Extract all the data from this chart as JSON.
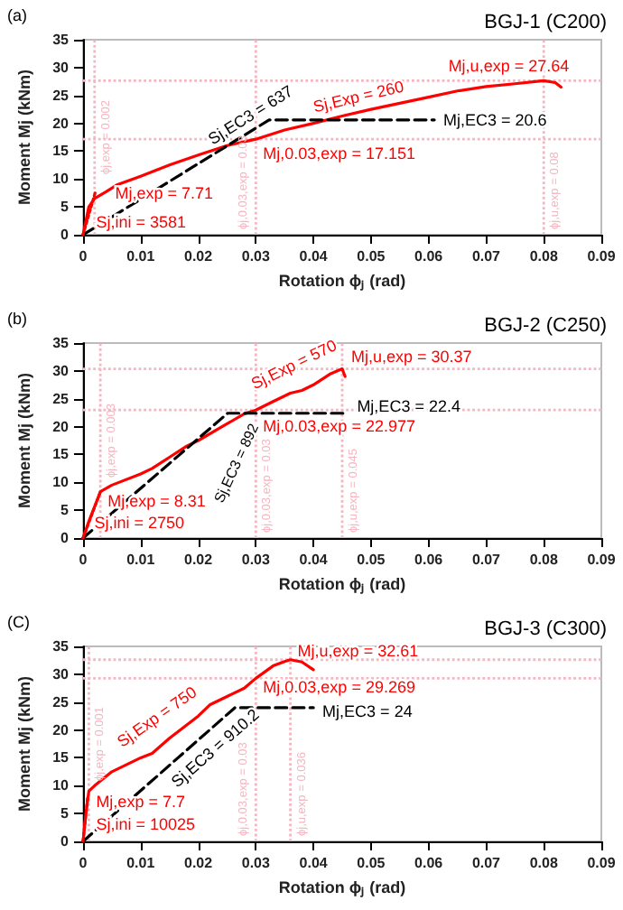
{
  "chart_data": [
    {
      "type": "line",
      "title": "BGJ-1 (C200)",
      "xlabel": "Rotation ϕⱼ (rad)",
      "ylabel": "Moment Mj (kNm)",
      "xlim": [
        0,
        0.09
      ],
      "xticks": [
        0,
        0.01,
        0.02,
        0.03,
        0.04,
        0.05,
        0.06,
        0.07,
        0.08,
        0.09
      ],
      "ylim": [
        0,
        35
      ],
      "yticks": [
        0,
        5,
        10,
        15,
        20,
        25,
        30,
        35
      ],
      "series": [
        {
          "color": "#ff0000",
          "line_style": "solid",
          "x": [
            0,
            0.001,
            0.002,
            0.004,
            0.006,
            0.01,
            0.015,
            0.02,
            0.025,
            0.03,
            0.035,
            0.04,
            0.045,
            0.05,
            0.055,
            0.06,
            0.065,
            0.07,
            0.075,
            0.08,
            0.082,
            0.083
          ],
          "values": [
            0,
            5,
            6.5,
            7.71,
            9,
            10.5,
            12.5,
            14.3,
            16,
            17.151,
            18.8,
            20,
            21.3,
            22.5,
            23.6,
            24.7,
            25.8,
            26.6,
            27.1,
            27.64,
            27.3,
            26.5
          ]
        },
        {
          "color": "#000000",
          "line_style": "dashed",
          "x": [
            0,
            0.0323,
            0.061
          ],
          "values": [
            0,
            20.6,
            20.6
          ]
        },
        {
          "color": "#ff0000",
          "line_style": "dotted",
          "x": [
            0,
            0.00215
          ],
          "values": [
            0,
            7.71
          ]
        }
      ],
      "ref_lines": [
        {
          "axis": "y",
          "value": 27.64,
          "label": null,
          "color": "#f4b6c0",
          "line_style": "dotted"
        },
        {
          "axis": "y",
          "value": 17.151,
          "label": null,
          "color": "#f4b6c0",
          "line_style": "dotted"
        },
        {
          "axis": "x",
          "value": 0.002,
          "label": "ϕj,exp = 0.002",
          "color": "#f4b6c0",
          "line_style": "dotted"
        },
        {
          "axis": "x",
          "value": 0.03,
          "label": "ϕj,0.03,exp = 0.03",
          "color": "#f4b6c0",
          "line_style": "dotted"
        },
        {
          "axis": "x",
          "value": 0.08,
          "label": "ϕj,u,exp = 0.08",
          "color": "#f4b6c0",
          "line_style": "dotted"
        }
      ],
      "annotations": [
        "(a)",
        {
          "text": "Mj,u,exp = 27.64",
          "x": 0.08,
          "y": 27.64
        },
        {
          "text": "Sj,Exp = 260",
          "x": 0.04,
          "y": 20
        },
        {
          "text": "Sj,EC3 = 637",
          "x": 0.022,
          "y": 14.01
        },
        {
          "text": "Mj,EC3 = 20.6",
          "x": 0.061,
          "y": 20.6
        },
        {
          "text": "Mj,0.03,exp = 17.151",
          "x": 0.03,
          "y": 17.151
        },
        {
          "text": "Mj,exp = 7.71",
          "x": 0.004,
          "y": 7.71
        },
        {
          "text": "Sj,ini = 3581",
          "x": 0.001,
          "y": 3.58
        }
      ]
    },
    {
      "type": "line",
      "title": "BGJ-2 (C250)",
      "xlabel": "Rotation ϕⱼ (rad)",
      "ylabel": "Moment Mj (kNm)",
      "xlim": [
        0,
        0.09
      ],
      "xticks": [
        0,
        0.01,
        0.02,
        0.03,
        0.04,
        0.05,
        0.06,
        0.07,
        0.08,
        0.09
      ],
      "ylim": [
        0,
        35
      ],
      "yticks": [
        0,
        5,
        10,
        15,
        20,
        25,
        30,
        35
      ],
      "series": [
        {
          "color": "#ff0000",
          "line_style": "solid",
          "x": [
            0,
            0.001,
            0.003,
            0.005,
            0.01,
            0.012,
            0.015,
            0.018,
            0.02,
            0.025,
            0.028,
            0.03,
            0.033,
            0.036,
            0.038,
            0.04,
            0.043,
            0.045,
            0.0455
          ],
          "values": [
            0,
            3,
            8.31,
            9.5,
            11.5,
            12.5,
            14.5,
            16.5,
            17.5,
            20.5,
            22.3,
            22.977,
            24.5,
            26,
            26.5,
            27.5,
            29.5,
            30.37,
            29
          ]
        },
        {
          "color": "#000000",
          "line_style": "dashed",
          "x": [
            0,
            0.0251,
            0.046
          ],
          "values": [
            0,
            22.4,
            22.4
          ]
        },
        {
          "color": "#ff0000",
          "line_style": "dotted",
          "x": [
            0,
            0.00302
          ],
          "values": [
            0,
            8.31
          ]
        }
      ],
      "ref_lines": [
        {
          "axis": "y",
          "value": 30.37,
          "label": null,
          "color": "#f4b6c0",
          "line_style": "dotted"
        },
        {
          "axis": "y",
          "value": 22.977,
          "label": null,
          "color": "#f4b6c0",
          "line_style": "dotted"
        },
        {
          "axis": "x",
          "value": 0.003,
          "label": "ϕj,exp = 0.003",
          "color": "#f4b6c0",
          "line_style": "dotted"
        },
        {
          "axis": "x",
          "value": 0.03,
          "label": "ϕj,0.03,exp = 0.03",
          "color": "#f4b6c0",
          "line_style": "dotted"
        },
        {
          "axis": "x",
          "value": 0.045,
          "label": "ϕj,u,exp = 0.045",
          "color": "#f4b6c0",
          "line_style": "dotted"
        }
      ],
      "annotations": [
        "(b)",
        {
          "text": "Mj,u,exp = 30.37",
          "x": 0.045,
          "y": 30.37
        },
        {
          "text": "Sj,Exp = 570",
          "x": 0.03,
          "y": 22.977
        },
        {
          "text": "Sj,EC3 = 892",
          "x": 0.016,
          "y": 14.27
        },
        {
          "text": "Mj,EC3 = 22.4",
          "x": 0.046,
          "y": 22.4
        },
        {
          "text": "Mj,0.03,exp = 22.977",
          "x": 0.03,
          "y": 22.977
        },
        {
          "text": "Mj,exp = 8.31",
          "x": 0.003,
          "y": 8.31
        },
        {
          "text": "Sj,ini = 2750",
          "x": 0.001,
          "y": 2.75
        }
      ]
    },
    {
      "type": "line",
      "title": "BGJ-3 (C300)",
      "xlabel": "Rotation ϕⱼ (rad)",
      "ylabel": "Moment Mj (kNm)",
      "xlim": [
        0,
        0.09
      ],
      "xticks": [
        0,
        0.01,
        0.02,
        0.03,
        0.04,
        0.05,
        0.06,
        0.07,
        0.08,
        0.09
      ],
      "ylim": [
        0,
        35
      ],
      "yticks": [
        0,
        5,
        10,
        15,
        20,
        25,
        30,
        35
      ],
      "series": [
        {
          "color": "#ff0000",
          "line_style": "solid",
          "x": [
            0,
            0.0005,
            0.001,
            0.002,
            0.005,
            0.01,
            0.012,
            0.015,
            0.02,
            0.022,
            0.025,
            0.028,
            0.03,
            0.033,
            0.035,
            0.036,
            0.038,
            0.04
          ],
          "values": [
            0,
            5,
            9,
            10,
            12.5,
            15,
            15.8,
            18.5,
            22.5,
            24.5,
            26,
            27.5,
            29.269,
            31.5,
            32.3,
            32.61,
            32.2,
            30.8
          ]
        },
        {
          "color": "#000000",
          "line_style": "dashed",
          "x": [
            0,
            0.02637,
            0.04
          ],
          "values": [
            0,
            24,
            24
          ]
        },
        {
          "color": "#ff0000",
          "line_style": "dotted",
          "x": [
            0,
            0.00077
          ],
          "values": [
            0,
            7.7
          ]
        }
      ],
      "ref_lines": [
        {
          "axis": "y",
          "value": 32.61,
          "label": null,
          "color": "#f4b6c0",
          "line_style": "dotted"
        },
        {
          "axis": "y",
          "value": 29.269,
          "label": null,
          "color": "#f4b6c0",
          "line_style": "dotted"
        },
        {
          "axis": "x",
          "value": 0.001,
          "label": "ϕj,exp = 0.001",
          "color": "#f4b6c0",
          "line_style": "dotted"
        },
        {
          "axis": "x",
          "value": 0.03,
          "label": "ϕj,0.03,exp = 0.03",
          "color": "#f4b6c0",
          "line_style": "dotted"
        },
        {
          "axis": "x",
          "value": 0.036,
          "label": "ϕj,u,exp = 0.036",
          "color": "#f4b6c0",
          "line_style": "dotted"
        }
      ],
      "annotations": [
        "(C)",
        {
          "text": "Mj,u,exp = 32.61",
          "x": 0.036,
          "y": 32.61
        },
        {
          "text": "Sj,Exp = 750",
          "x": 0.01,
          "y": 15
        },
        {
          "text": "Sj,EC3 = 910.2",
          "x": 0.017,
          "y": 15.47
        },
        {
          "text": "Mj,EC3 = 24",
          "x": 0.04,
          "y": 24
        },
        {
          "text": "Mj,0.03,exp = 29.269",
          "x": 0.03,
          "y": 29.269
        },
        {
          "text": "Mj,exp = 7.7",
          "x": 0.001,
          "y": 7.7
        },
        {
          "text": "Sj,ini = 10025",
          "x": 0.001,
          "y": 3
        }
      ]
    }
  ]
}
